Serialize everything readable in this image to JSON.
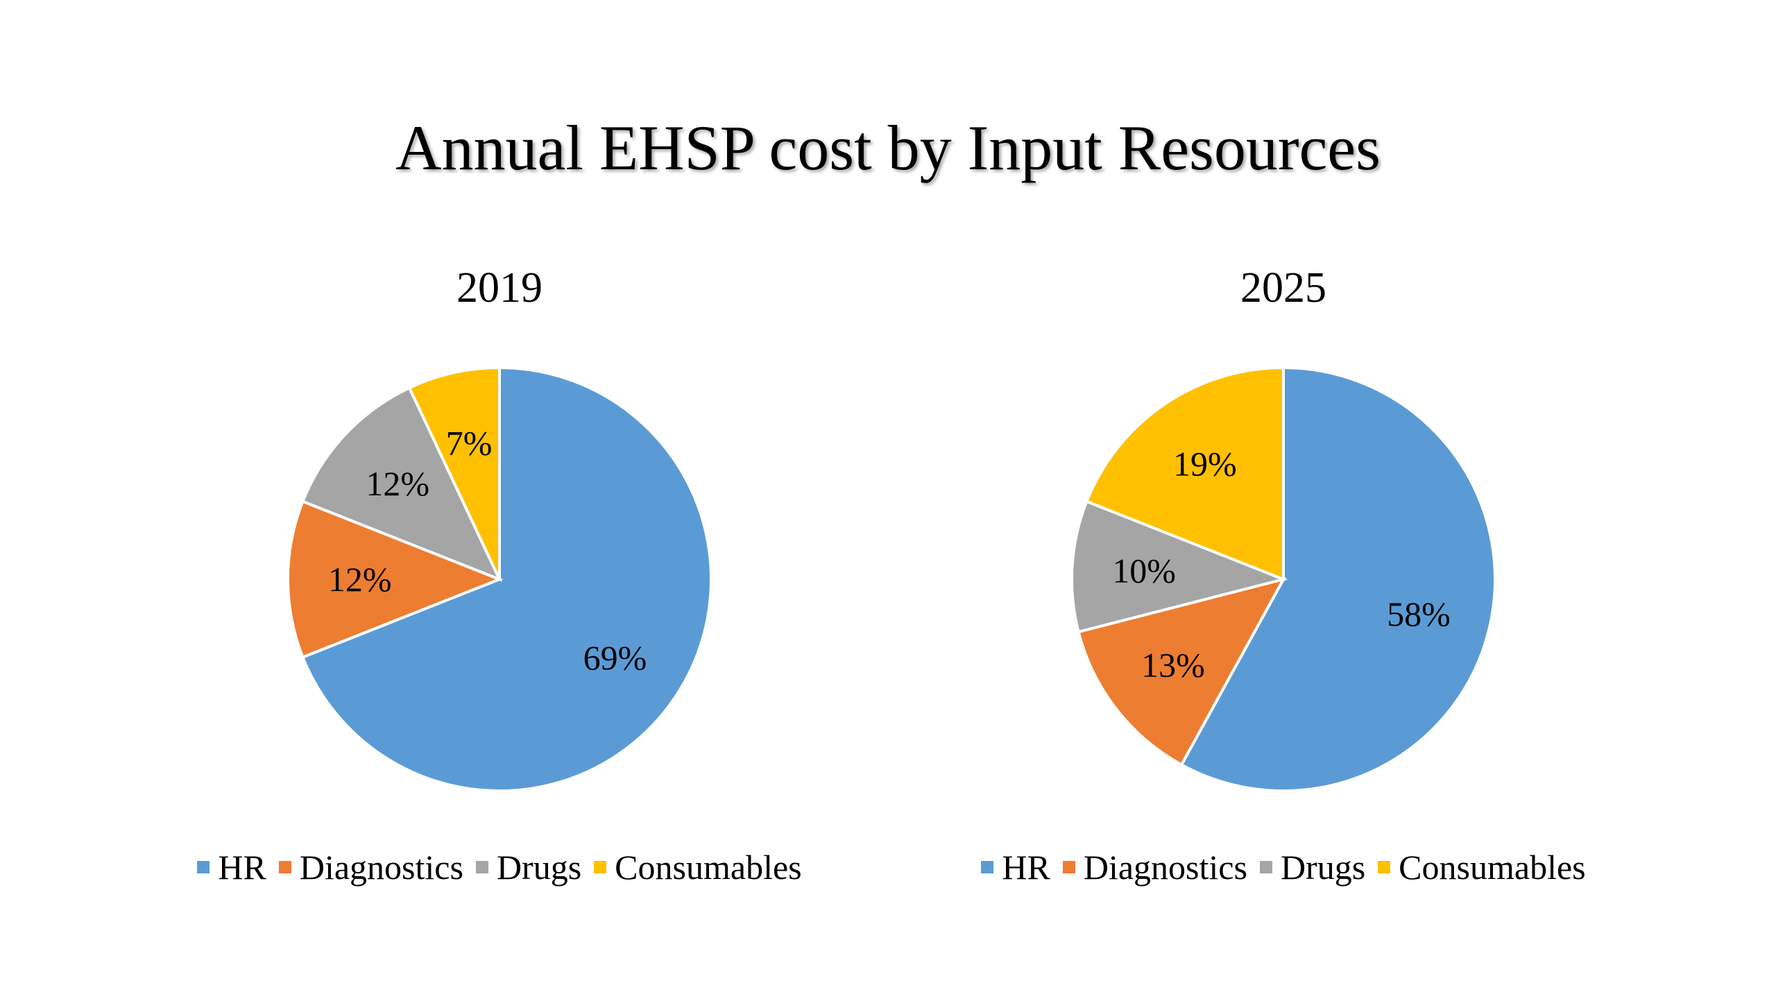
{
  "title": "Annual EHSP cost by Input Resources",
  "colors": {
    "HR": "#5B9BD5",
    "Diagnostics": "#ED7D31",
    "Drugs": "#A5A5A5",
    "Consumables": "#FFC000"
  },
  "chart_data": [
    {
      "type": "pie",
      "title": "2019",
      "categories": [
        "HR",
        "Diagnostics",
        "Drugs",
        "Consumables"
      ],
      "values": [
        69,
        12,
        12,
        7
      ],
      "labels": [
        "69%",
        "12%",
        "12%",
        "7%"
      ],
      "legend": [
        "HR",
        "Diagnostics",
        "Drugs",
        "Consumables"
      ],
      "legend_position": "bottom"
    },
    {
      "type": "pie",
      "title": "2025",
      "categories": [
        "HR",
        "Diagnostics",
        "Drugs",
        "Consumables"
      ],
      "values": [
        58,
        13,
        10,
        19
      ],
      "labels": [
        "58%",
        "13%",
        "10%",
        "19%"
      ],
      "legend": [
        "HR",
        "Diagnostics",
        "Drugs",
        "Consumables"
      ],
      "legend_position": "bottom"
    }
  ]
}
